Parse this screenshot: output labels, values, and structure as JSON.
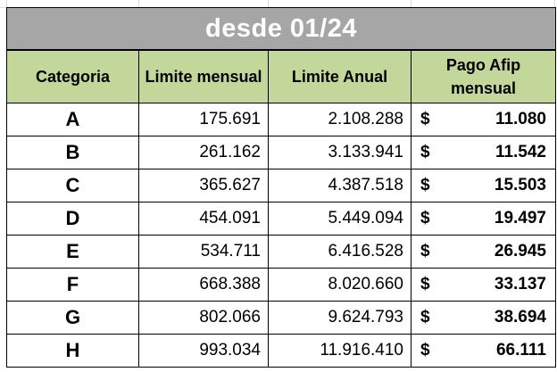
{
  "title": "desde 01/24",
  "headers": {
    "categoria": "Categoria",
    "limite_mensual": "Limite mensual",
    "limite_anual": "Limite Anual",
    "pago_line1": "Pago Afip",
    "pago_line2": "mensual"
  },
  "currency_symbol": "$",
  "rows": [
    {
      "categoria": "A",
      "limite_mensual": "175.691",
      "limite_anual": "2.108.288",
      "pago": "11.080"
    },
    {
      "categoria": "B",
      "limite_mensual": "261.162",
      "limite_anual": "3.133.941",
      "pago": "11.542"
    },
    {
      "categoria": "C",
      "limite_mensual": "365.627",
      "limite_anual": "4.387.518",
      "pago": "15.503"
    },
    {
      "categoria": "D",
      "limite_mensual": "454.091",
      "limite_anual": "5.449.094",
      "pago": "19.497"
    },
    {
      "categoria": "E",
      "limite_mensual": "534.711",
      "limite_anual": "6.416.528",
      "pago": "26.945"
    },
    {
      "categoria": "F",
      "limite_mensual": "668.388",
      "limite_anual": "8.020.660",
      "pago": "33.137"
    },
    {
      "categoria": "G",
      "limite_mensual": "802.066",
      "limite_anual": "9.624.793",
      "pago": "38.694"
    },
    {
      "categoria": "H",
      "limite_mensual": "993.034",
      "limite_anual": "11.916.410",
      "pago": "66.111"
    }
  ],
  "colors": {
    "title_bg": "#a6a6a6",
    "header_bg": "#c4d79b",
    "border": "#000000"
  }
}
